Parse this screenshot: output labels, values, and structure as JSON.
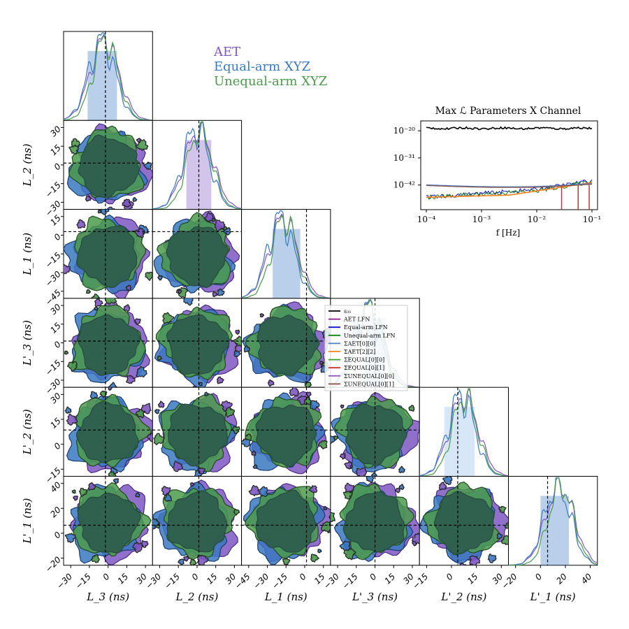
{
  "colors": {
    "aet": "#7e57c2",
    "equal": "#3a78c2",
    "unequal": "#4c9a4c",
    "overlap": "#2e5e4e",
    "s31": "#000000",
    "aet_lfn": "#8b1a8b",
    "equal_lfn": "#1010d0",
    "unequal_lfn": "#108010",
    "sig_aet00": "#4a7fc0",
    "sig_aet22": "#ff8020",
    "sig_eq00": "#30a030",
    "sig_eq01": "#d03030",
    "sig_uneq00": "#9060c0",
    "sig_uneq01": "#8c5040"
  },
  "chart_data": [
    {
      "type": "corner",
      "parameters": [
        "L3",
        "L2",
        "L1",
        "L'3",
        "L'2",
        "L'1"
      ],
      "axis_labels": [
        "L_3 (ns)",
        "L_2 (ns)",
        "L_1 (ns)",
        "L'_3 (ns)",
        "L'_2 (ns)",
        "L'_1 (ns)"
      ],
      "series": [
        {
          "name": "AET",
          "color": "#7e57c2"
        },
        {
          "name": "Equal-arm XYZ",
          "color": "#3a78c2"
        },
        {
          "name": "Unequal-arm XYZ",
          "color": "#4c9a4c"
        }
      ],
      "x_ticks": [
        [
          "−30",
          "−15",
          "0",
          "15",
          "30"
        ],
        [
          "−30",
          "−15",
          "0",
          "15",
          "30"
        ],
        [
          "−45",
          "−30",
          "−15",
          "0",
          "15"
        ],
        [
          "−30",
          "−15",
          "0",
          "15",
          "30"
        ],
        [
          "−15",
          "0",
          "15",
          "30"
        ],
        [
          "−20",
          "0",
          "20",
          "40"
        ]
      ],
      "y_ticks": {
        "L2": [
          "30",
          "15",
          "0",
          "−15",
          "−30"
        ],
        "L1": [
          "15",
          "0",
          "−15",
          "−30",
          "−45"
        ],
        "L'3": [
          "30",
          "15",
          "0",
          "−15",
          "−30"
        ],
        "L'2": [
          "30",
          "15",
          "0",
          "−15"
        ],
        "L'1": [
          "40",
          "20",
          "0",
          "−20"
        ]
      },
      "ranges": [
        [
          -35,
          35
        ],
        [
          -35,
          35
        ],
        [
          -50,
          20
        ],
        [
          -35,
          35
        ],
        [
          -20,
          35
        ],
        [
          -30,
          40
        ]
      ],
      "truth": [
        0,
        0,
        0,
        0,
        0,
        0
      ]
    },
    {
      "type": "line",
      "title": "Max ℒ Parameters X Channel",
      "xlabel": "f [Hz]",
      "xscale": "log",
      "yscale": "log",
      "x_ticks": [
        "10⁻⁴",
        "10⁻³",
        "10⁻²",
        "10⁻¹"
      ],
      "y_ticks": [
        "10⁻²⁰",
        "10⁻³¹",
        "10⁻⁴²"
      ],
      "xlim": [
        0.0001,
        0.1
      ],
      "ylim_exponents": [
        -52,
        -16
      ],
      "series": [
        {
          "name": "s₃₁",
          "log10_values_at": {
            "0.0001": -19,
            "0.1": -19
          }
        },
        {
          "name": "AET LFN"
        },
        {
          "name": "Equal-arm LFN",
          "log10_values_at": {
            "0.0001": -47,
            "0.1": -42
          }
        },
        {
          "name": "Unequal-arm LFN",
          "log10_values_at": {
            "0.0001": -47,
            "0.1": -42
          }
        },
        {
          "name": "ΣAET[0][0]",
          "log10_values_at": {
            "0.0001": -42,
            "0.001": -43,
            "0.01": -42,
            "0.1": -41
          }
        },
        {
          "name": "ΣAET[2][2]",
          "log10_values_at": {
            "0.0001": -47,
            "0.001": -46,
            "0.01": -42,
            "0.1": -41
          }
        },
        {
          "name": "ΣEQUAL[0][0]"
        },
        {
          "name": "ΣEQUAL[0][1]"
        },
        {
          "name": "ΣUNEQUAL[0][0]"
        },
        {
          "name": "ΣUNEQUAL[0][1]"
        }
      ]
    }
  ],
  "legend_small": [
    {
      "label": "s₃₁",
      "key": "s31"
    },
    {
      "label": "AET LFN",
      "key": "aet_lfn"
    },
    {
      "label": "Equal-arm LFN",
      "key": "equal_lfn"
    },
    {
      "label": "Unequal-arm LFN",
      "key": "unequal_lfn"
    },
    {
      "label": "ΣAET[0][0]",
      "key": "sig_aet00"
    },
    {
      "label": "ΣAET[2][2]",
      "key": "sig_aet22"
    },
    {
      "label": "ΣEQUAL[0][0]",
      "key": "sig_eq00"
    },
    {
      "label": "ΣEQUAL[0][1]",
      "key": "sig_eq01"
    },
    {
      "label": "ΣUNEQUAL[0][0]",
      "key": "sig_uneq00"
    },
    {
      "label": "ΣUNEQUAL[0][1]",
      "key": "sig_uneq01"
    }
  ]
}
